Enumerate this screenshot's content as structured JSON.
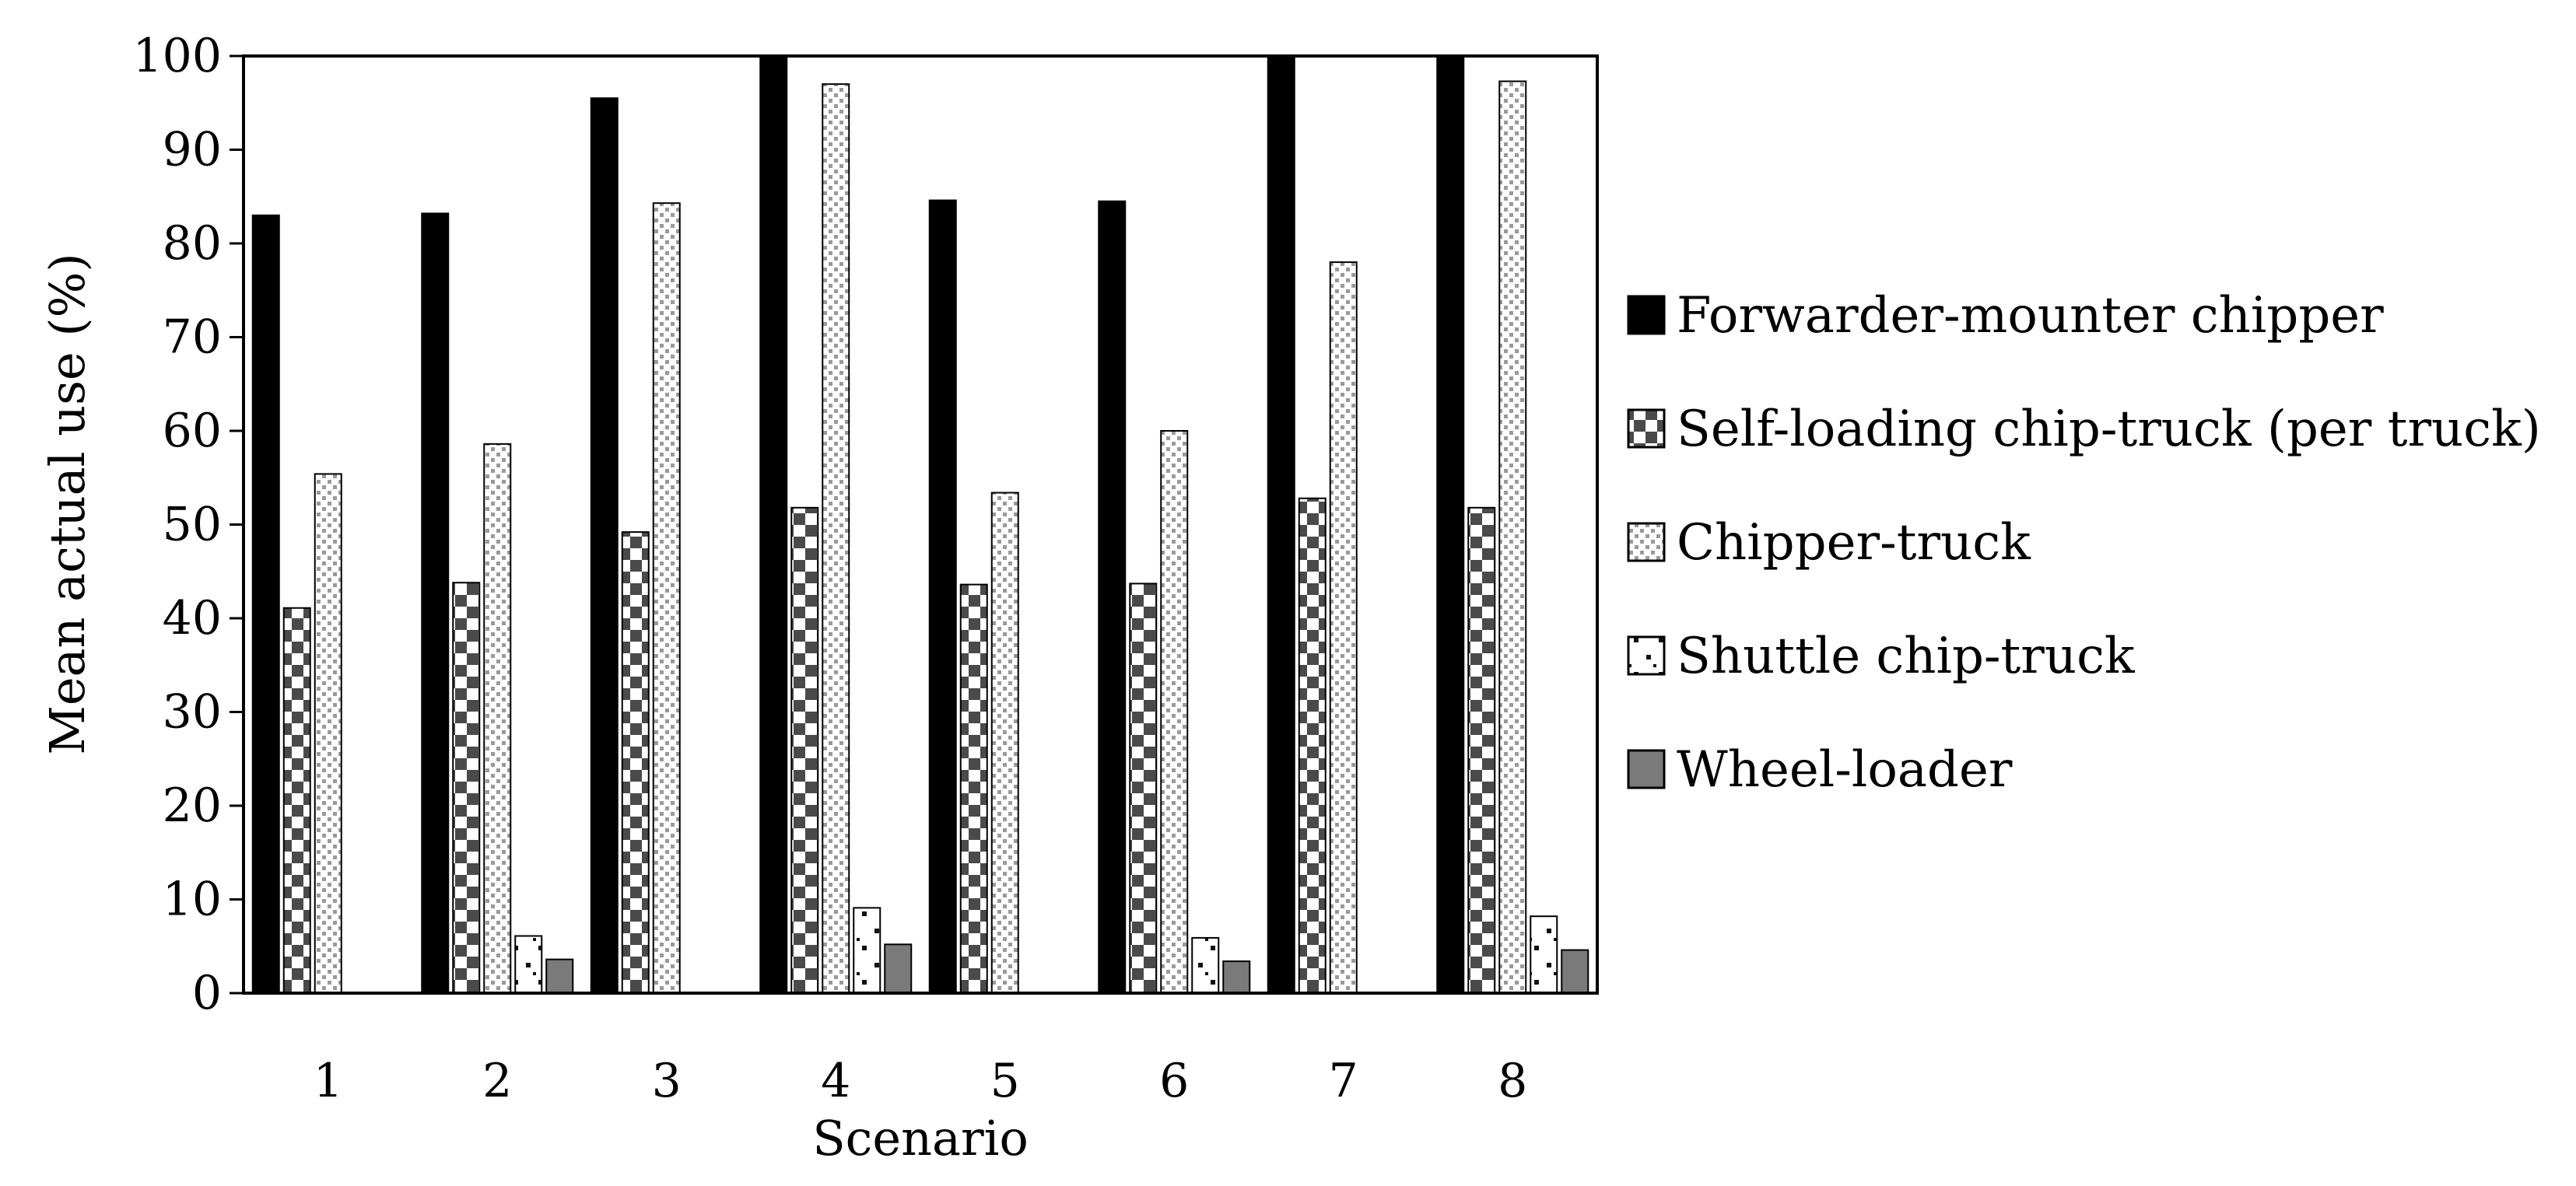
{
  "chart_data": {
    "type": "bar",
    "xlabel": "Scenario",
    "ylabel": "Mean actual use (%)",
    "categories": [
      "1",
      "2",
      "3",
      "4",
      "5",
      "6",
      "7",
      "8"
    ],
    "ylim": [
      0,
      100
    ],
    "yticks": [
      "0",
      "10",
      "20",
      "30",
      "40",
      "50",
      "60",
      "70",
      "80",
      "90",
      "100"
    ],
    "grid": false,
    "legend_position": "right",
    "series": [
      {
        "name": "Forwarder-mounter chipper",
        "pattern": "solid-black",
        "values": [
          83.0,
          83.2,
          95.5,
          100.0,
          84.6,
          84.5,
          100.0,
          100.0
        ]
      },
      {
        "name": "Self-loading chip-truck (per truck)",
        "pattern": "checker",
        "values": [
          41.1,
          43.8,
          49.2,
          51.8,
          43.6,
          43.7,
          52.8,
          51.8
        ]
      },
      {
        "name": "Chipper-truck",
        "pattern": "light-dots",
        "values": [
          55.4,
          58.6,
          84.3,
          97.0,
          53.4,
          60.0,
          78.0,
          97.3
        ]
      },
      {
        "name": "Shuttle chip-truck",
        "pattern": "sparse-dots",
        "values": [
          0,
          6.1,
          0,
          9.1,
          0,
          5.9,
          0,
          8.2
        ]
      },
      {
        "name": "Wheel-loader",
        "pattern": "solid-gray",
        "values": [
          0,
          3.6,
          0,
          5.2,
          0,
          3.4,
          0,
          4.6
        ]
      }
    ]
  }
}
